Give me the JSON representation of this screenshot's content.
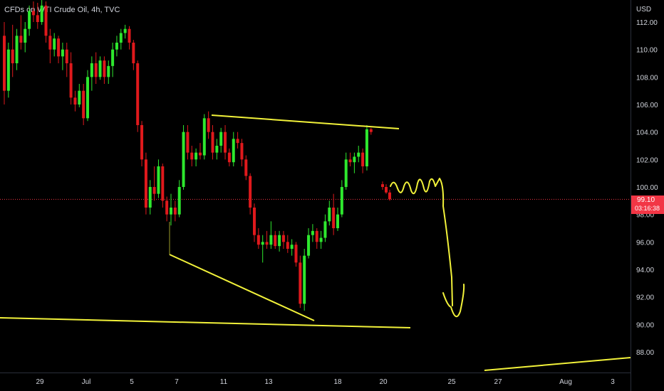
{
  "chart_data": {
    "type": "candlestick",
    "title": "CFDs on WTI Crude Oil, 4h, TVC",
    "currency": "USD",
    "y_ticks": [
      "112.00",
      "110.00",
      "108.00",
      "106.00",
      "104.00",
      "102.00",
      "100.00",
      "98.00",
      "96.00",
      "94.00",
      "92.00",
      "90.00",
      "88.00"
    ],
    "x_ticks": [
      "29",
      "Jul",
      "5",
      "7",
      "11",
      "13",
      "18",
      "20",
      "25",
      "27",
      "Aug",
      "3"
    ],
    "ylim": [
      86.6,
      113.6
    ],
    "current_price": "99.10",
    "countdown": "03:16:38",
    "colors": {
      "up": "#26a69a",
      "up_bright": "#2ee82e",
      "down": "#e0191c",
      "annotation": "#f2f23a",
      "price_line": "#f23645"
    },
    "candles": [
      [
        111.0,
        112.0,
        106.0,
        107.0
      ],
      [
        107.0,
        110.5,
        106.5,
        110.0
      ],
      [
        110.0,
        111.8,
        108.0,
        109.0
      ],
      [
        109.0,
        111.5,
        108.5,
        111.0
      ],
      [
        111.0,
        112.5,
        110.0,
        110.5
      ],
      [
        110.5,
        112.0,
        109.8,
        111.5
      ],
      [
        111.5,
        113.2,
        111.0,
        112.8
      ],
      [
        112.8,
        113.5,
        112.0,
        112.5
      ],
      [
        112.5,
        113.4,
        111.5,
        112.0
      ],
      [
        112.0,
        113.6,
        111.8,
        113.2
      ],
      [
        113.2,
        113.5,
        110.5,
        111.0
      ],
      [
        111.0,
        111.5,
        109.0,
        110.0
      ],
      [
        110.0,
        111.2,
        109.5,
        110.8
      ],
      [
        110.8,
        111.0,
        109.0,
        109.5
      ],
      [
        109.5,
        110.5,
        108.5,
        110.0
      ],
      [
        110.0,
        110.5,
        108.0,
        109.0
      ],
      [
        109.0,
        109.8,
        106.0,
        106.5
      ],
      [
        106.5,
        107.0,
        105.5,
        106.0
      ],
      [
        106.0,
        107.5,
        105.8,
        107.0
      ],
      [
        107.0,
        107.5,
        104.5,
        105.0
      ],
      [
        105.0,
        108.5,
        104.8,
        108.0
      ],
      [
        108.0,
        109.5,
        107.0,
        109.0
      ],
      [
        109.0,
        109.8,
        107.5,
        108.0
      ],
      [
        108.0,
        109.5,
        107.8,
        109.2
      ],
      [
        109.2,
        109.5,
        107.5,
        108.0
      ],
      [
        108.0,
        109.2,
        107.5,
        108.8
      ],
      [
        108.8,
        110.5,
        108.0,
        110.0
      ],
      [
        110.0,
        111.0,
        109.5,
        110.5
      ],
      [
        110.5,
        111.5,
        110.0,
        111.2
      ],
      [
        111.2,
        111.8,
        110.8,
        111.5
      ],
      [
        111.5,
        111.7,
        110.0,
        110.5
      ],
      [
        110.5,
        110.7,
        108.5,
        109.0
      ],
      [
        109.0,
        109.2,
        104.0,
        104.5
      ],
      [
        104.5,
        104.8,
        101.5,
        102.0
      ],
      [
        102.0,
        102.5,
        98.0,
        98.5
      ],
      [
        98.5,
        100.5,
        98.0,
        100.0
      ],
      [
        100.0,
        101.5,
        99.0,
        99.5
      ],
      [
        99.5,
        102.0,
        99.2,
        101.5
      ],
      [
        101.5,
        101.7,
        98.5,
        99.0
      ],
      [
        99.0,
        99.3,
        97.5,
        98.0
      ],
      [
        98.0,
        99.5,
        97.2,
        98.5
      ],
      [
        98.5,
        99.0,
        97.5,
        98.0
      ],
      [
        98.0,
        100.5,
        97.8,
        100.0
      ],
      [
        100.0,
        104.5,
        99.8,
        104.0
      ],
      [
        104.0,
        104.5,
        102.0,
        102.5
      ],
      [
        102.5,
        103.0,
        101.5,
        102.0
      ],
      [
        102.0,
        102.8,
        101.5,
        102.5
      ],
      [
        102.5,
        103.2,
        102.0,
        102.3
      ],
      [
        102.3,
        105.3,
        102.0,
        105.0
      ],
      [
        105.0,
        105.5,
        103.5,
        104.0
      ],
      [
        104.0,
        104.5,
        102.0,
        102.5
      ],
      [
        102.5,
        103.5,
        102.0,
        103.0
      ],
      [
        103.0,
        104.3,
        102.5,
        104.0
      ],
      [
        104.0,
        104.5,
        102.0,
        102.5
      ],
      [
        102.5,
        102.8,
        101.5,
        101.8
      ],
      [
        101.8,
        104.0,
        101.5,
        103.5
      ],
      [
        103.5,
        104.0,
        102.8,
        103.2
      ],
      [
        103.2,
        103.5,
        101.5,
        102.0
      ],
      [
        102.0,
        102.3,
        100.5,
        100.8
      ],
      [
        100.8,
        101.0,
        98.0,
        98.5
      ],
      [
        98.5,
        98.8,
        96.0,
        96.5
      ],
      [
        96.5,
        97.0,
        95.5,
        95.8
      ],
      [
        95.8,
        96.5,
        94.5,
        96.0
      ],
      [
        96.0,
        96.8,
        95.5,
        95.8
      ],
      [
        95.8,
        97.5,
        95.5,
        96.5
      ],
      [
        96.5,
        96.8,
        95.5,
        95.7
      ],
      [
        95.7,
        96.8,
        95.3,
        96.5
      ],
      [
        96.5,
        96.8,
        95.5,
        96.0
      ],
      [
        96.0,
        96.5,
        95.2,
        95.5
      ],
      [
        95.5,
        96.2,
        95.0,
        95.8
      ],
      [
        95.8,
        96.0,
        94.2,
        94.5
      ],
      [
        94.5,
        95.0,
        91.2,
        91.5
      ],
      [
        91.5,
        95.5,
        91.0,
        95.0
      ],
      [
        95.0,
        97.0,
        94.8,
        96.5
      ],
      [
        96.5,
        97.3,
        96.0,
        96.8
      ],
      [
        96.8,
        97.0,
        95.5,
        96.0
      ],
      [
        96.0,
        96.8,
        95.5,
        96.3
      ],
      [
        96.3,
        98.0,
        96.0,
        97.5
      ],
      [
        97.5,
        99.0,
        97.2,
        98.5
      ],
      [
        98.5,
        99.5,
        96.5,
        97.0
      ],
      [
        97.0,
        98.5,
        96.8,
        98.0
      ],
      [
        98.0,
        100.5,
        97.8,
        100.0
      ],
      [
        100.0,
        102.5,
        99.8,
        102.0
      ],
      [
        102.0,
        102.5,
        101.5,
        101.8
      ],
      [
        101.8,
        102.5,
        101.0,
        102.2
      ],
      [
        102.2,
        103.0,
        101.8,
        102.5
      ],
      [
        102.5,
        102.8,
        101.0,
        101.5
      ],
      [
        101.5,
        104.5,
        101.2,
        104.2
      ],
      [
        104.2,
        104.3,
        103.8,
        104.0
      ],
      [
        100.2,
        100.4,
        99.8,
        100.0
      ],
      [
        100.0,
        100.2,
        99.5,
        99.6
      ],
      [
        99.6,
        99.8,
        99.0,
        99.1
      ]
    ],
    "annotations": [
      "upper trendline",
      "lower trendline",
      "long support line",
      "rising line",
      "projected path drawing"
    ]
  }
}
